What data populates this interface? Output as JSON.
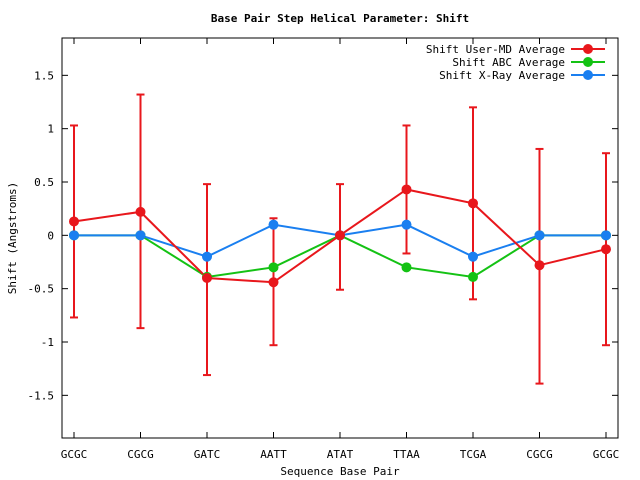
{
  "chart_data": {
    "type": "line",
    "title": "Base Pair Step Helical Parameter: Shift",
    "xlabel": "Sequence Base Pair",
    "ylabel": "Shift (Angstroms)",
    "categories": [
      "GCGC",
      "CGCG",
      "GATC",
      "AATT",
      "ATAT",
      "TTAA",
      "TCGA",
      "CGCG",
      "GCGC"
    ],
    "ylim": [
      -1.9,
      1.85
    ],
    "yticks": [
      -1.5,
      -1,
      -0.5,
      0,
      0.5,
      1,
      1.5
    ],
    "ytick_labels": [
      "-1.5",
      "-1",
      "-0.5",
      "0",
      "0.5",
      "1",
      "1.5"
    ],
    "grid": false,
    "legend_position": "top-right",
    "series": [
      {
        "name": "Shift User-MD Average",
        "color": "#e8171c",
        "values": [
          0.13,
          0.22,
          -0.4,
          -0.44,
          0.0,
          0.43,
          0.3,
          -0.28,
          -0.13
        ],
        "error_low": [
          -0.77,
          -0.87,
          -1.31,
          -1.03,
          -0.51,
          -0.17,
          -0.6,
          -1.39,
          -1.03
        ],
        "error_high": [
          1.03,
          1.32,
          0.48,
          0.16,
          0.48,
          1.03,
          1.2,
          0.81,
          0.77
        ]
      },
      {
        "name": "Shift ABC Average",
        "color": "#14c214",
        "values": [
          0.0,
          0.0,
          -0.39,
          -0.3,
          0.0,
          -0.3,
          -0.39,
          0.0,
          0.0
        ]
      },
      {
        "name": "Shift X-Ray Average",
        "color": "#1a7ff0",
        "values": [
          0.0,
          0.0,
          -0.2,
          0.1,
          0.0,
          0.1,
          -0.2,
          0.0,
          0.0
        ]
      }
    ]
  }
}
